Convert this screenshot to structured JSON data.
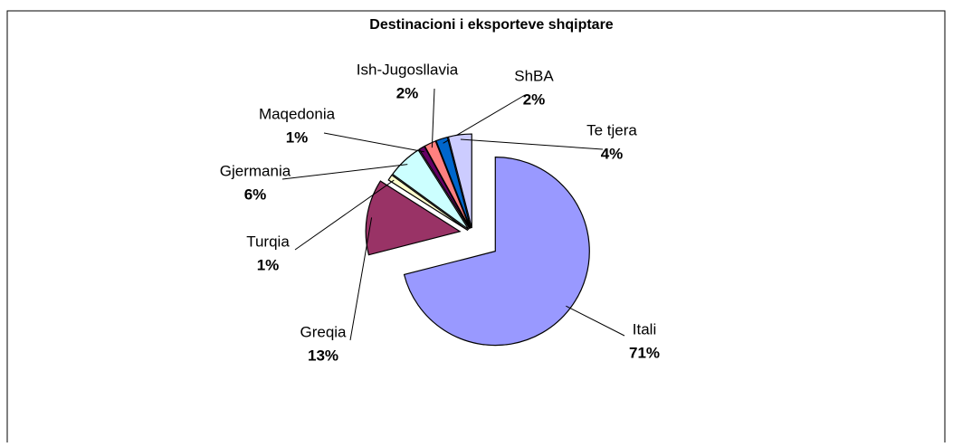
{
  "chart_data": {
    "type": "pie",
    "title": "Destinacioni i eksporteve shqiptare",
    "categories": [
      "Itali",
      "Greqia",
      "Turqia",
      "Gjermania",
      "Maqedonia",
      "Ish-Jugosllavia",
      "ShBA",
      "Te tjera"
    ],
    "values": [
      71,
      13,
      1,
      6,
      1,
      2,
      2,
      4
    ],
    "value_labels": [
      "71%",
      "13%",
      "1%",
      "6%",
      "1%",
      "2%",
      "2%",
      "4%"
    ],
    "colors": [
      "#9999ff",
      "#993366",
      "#ffffcc",
      "#ccffff",
      "#660066",
      "#ff8080",
      "#0066cc",
      "#ccccff"
    ]
  }
}
